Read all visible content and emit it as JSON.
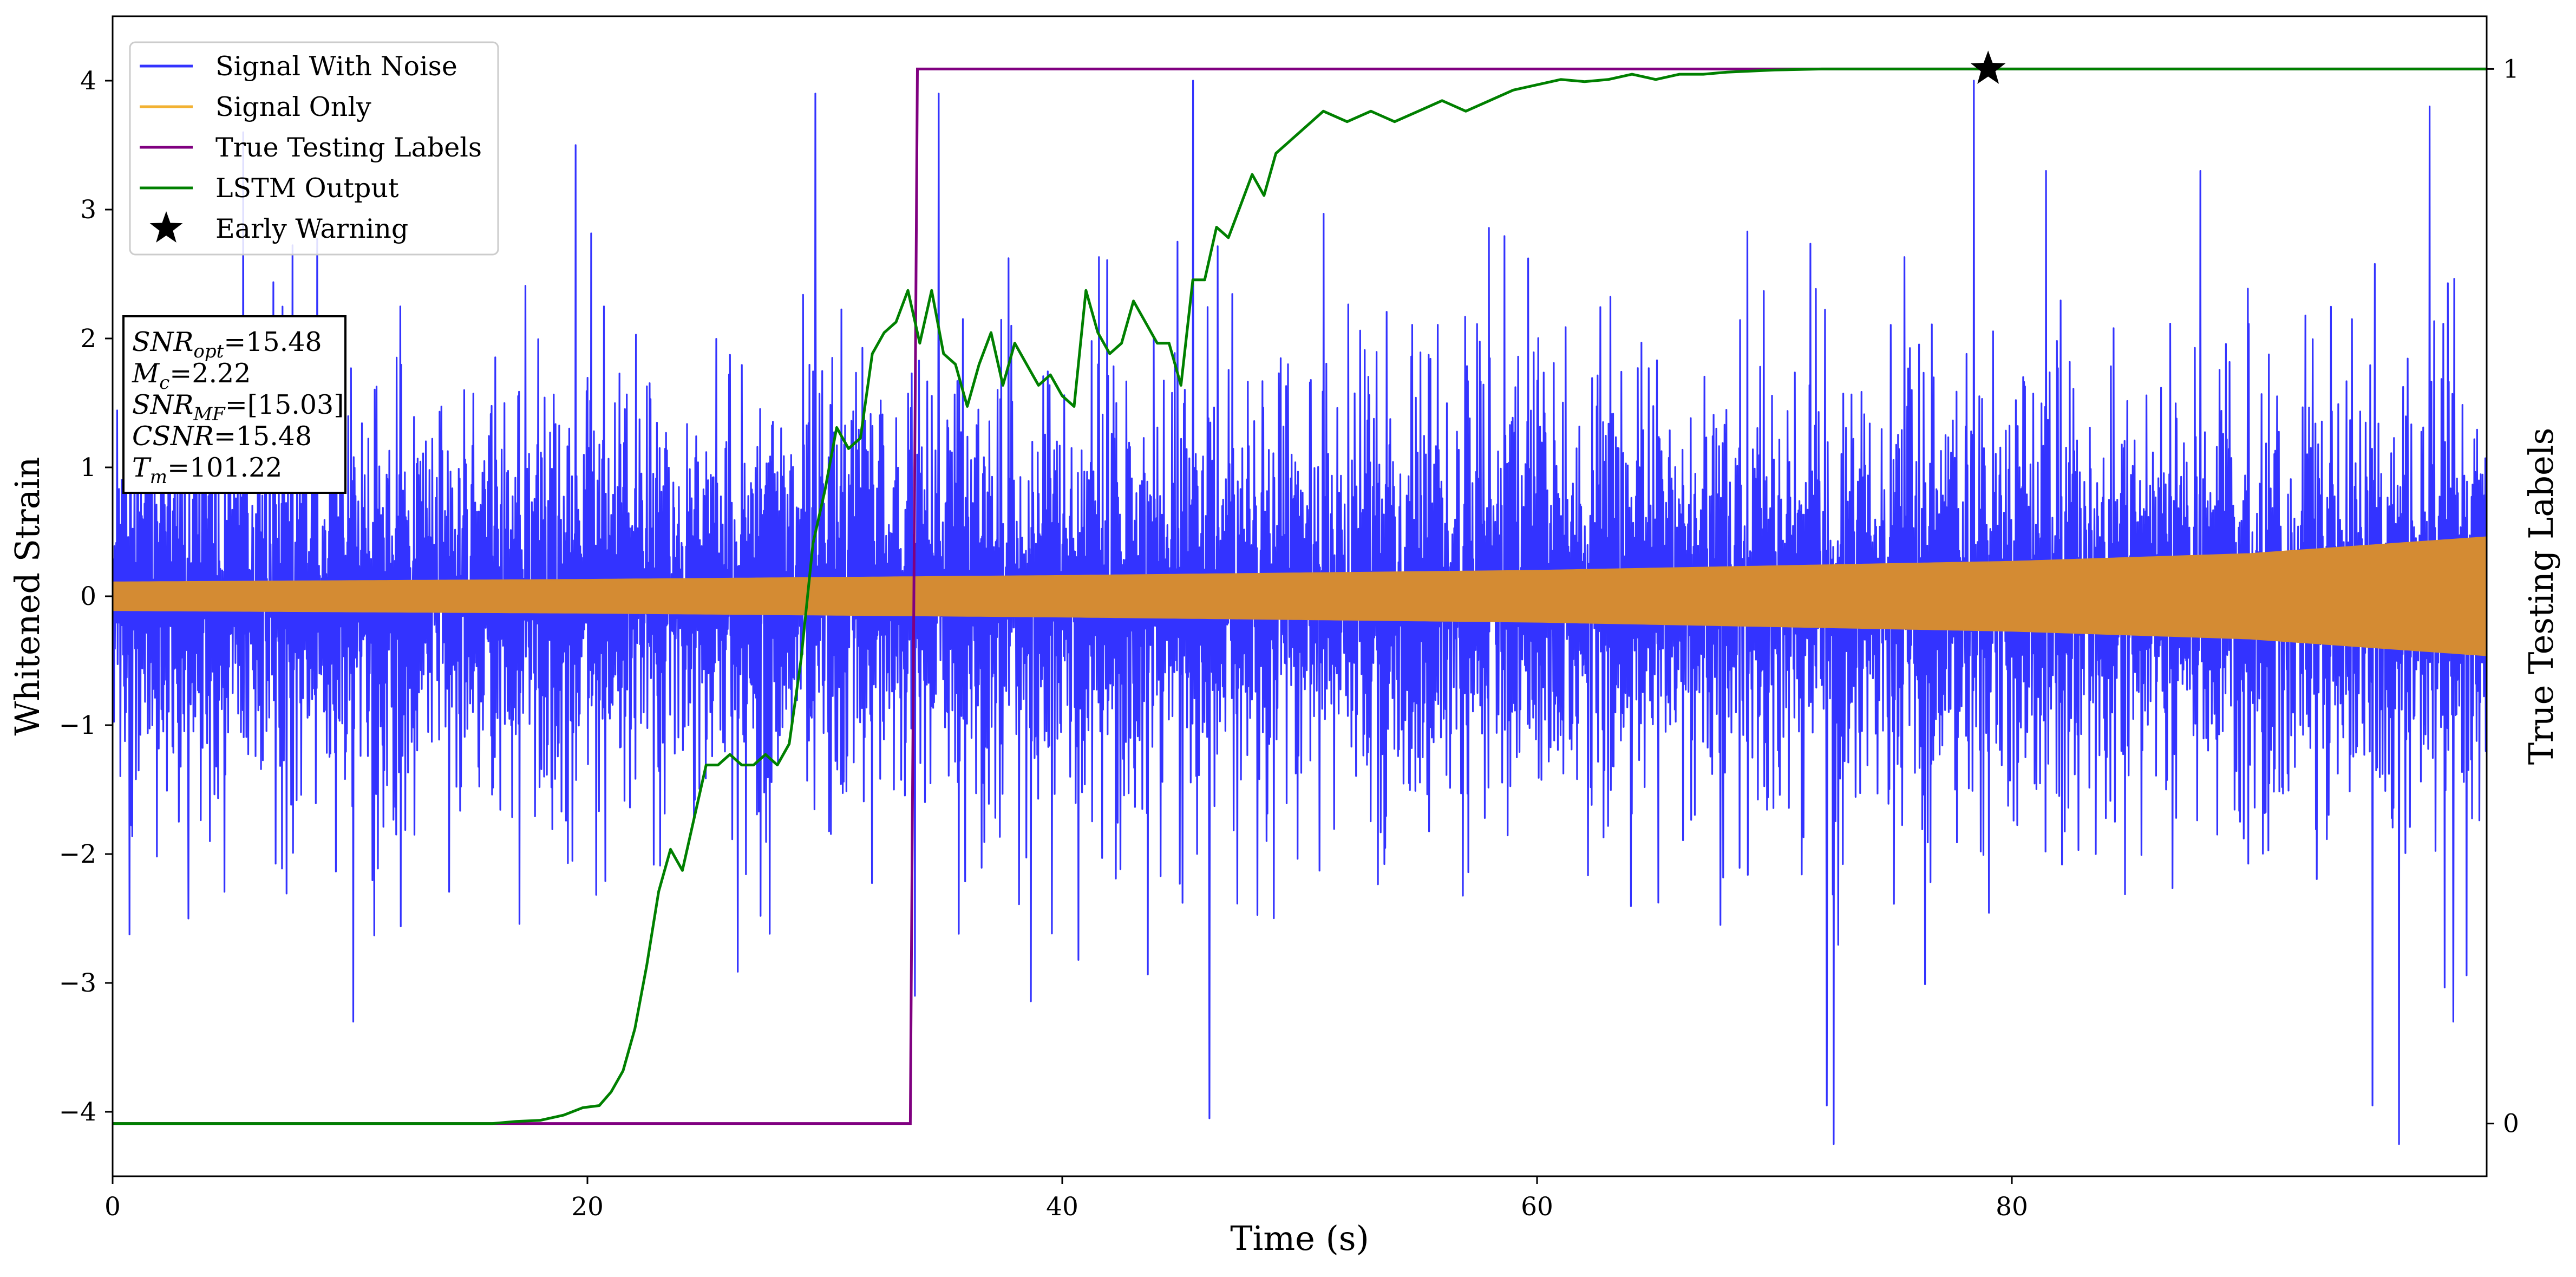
{
  "chart_data": {
    "type": "line",
    "title": "",
    "xlabel": "Time (s)",
    "ylabel": "Whitened Strain",
    "y2label": "True Testing Labels",
    "xlim": [
      0,
      100
    ],
    "ylim": [
      -4.5,
      4.5
    ],
    "y2lim": [
      -0.05,
      1.05
    ],
    "x_ticks": [
      "0",
      "20",
      "40",
      "60",
      "80"
    ],
    "y_ticks": [
      "−4",
      "−3",
      "−2",
      "−1",
      "0",
      "1",
      "2",
      "3",
      "4"
    ],
    "y2_ticks": [
      "0",
      "1"
    ],
    "legend": {
      "placement": "upper-left",
      "entries": [
        {
          "label": "Signal With Noise",
          "color": "#3333ff",
          "marker": "line"
        },
        {
          "label": "Signal Only",
          "color": "#f2b233",
          "marker": "line"
        },
        {
          "label": "True Testing Labels",
          "color": "#800080",
          "marker": "line"
        },
        {
          "label": "LSTM Output",
          "color": "#008000",
          "marker": "line"
        },
        {
          "label": "Early Warning",
          "color": "#000000",
          "marker": "star"
        }
      ]
    },
    "annotation_lines": [
      {
        "var": "SNR",
        "sub": "opt",
        "value": "=15.48"
      },
      {
        "var": "M",
        "sub": "c",
        "value": "=2.22"
      },
      {
        "var": "SNR",
        "sub": "MF",
        "value": "=[15.03]"
      },
      {
        "var": "CSNR",
        "sub": "",
        "value": "=15.48"
      },
      {
        "var": "T",
        "sub": "m",
        "value": "=101.22"
      }
    ],
    "series": [
      {
        "name": "Signal With Noise",
        "axis": "left",
        "color": "#3333ff",
        "kind": "noise_band",
        "typical_amplitude": 1.6,
        "extremes_x": [
          3.2,
          5.5,
          19.5,
          29.6,
          33.8,
          34.8,
          45.5,
          46.2,
          72.2,
          72.5,
          78.4,
          95.2,
          96.3,
          97.6,
          98.6
        ],
        "extremes_y": [
          -2.5,
          3.6,
          3.5,
          3.9,
          -3.1,
          3.9,
          4.0,
          -4.05,
          -3.95,
          -4.25,
          4.0,
          -3.95,
          -4.25,
          3.8,
          -3.3
        ]
      },
      {
        "name": "Signal Only",
        "axis": "left",
        "color": "#d48b33",
        "kind": "chirp_envelope",
        "x": [
          0,
          20,
          40,
          60,
          80,
          90,
          100
        ],
        "envelope": [
          0.11,
          0.13,
          0.16,
          0.2,
          0.27,
          0.33,
          0.46
        ]
      },
      {
        "name": "True Testing Labels",
        "axis": "right",
        "color": "#800080",
        "x": [
          0,
          33.6,
          33.9,
          100
        ],
        "y": [
          0,
          0,
          1,
          1
        ]
      },
      {
        "name": "LSTM Output",
        "axis": "right",
        "color": "#008000",
        "x": [
          0,
          16,
          17,
          18,
          19,
          19.8,
          20.5,
          21,
          21.5,
          22,
          22.5,
          23,
          23.5,
          24,
          24.5,
          25,
          25.5,
          26,
          26.5,
          27,
          27.5,
          28,
          28.5,
          29,
          29.5,
          30,
          30.5,
          31,
          31.5,
          32,
          32.5,
          33,
          33.5,
          34,
          34.5,
          35,
          35.5,
          36,
          36.5,
          37,
          37.5,
          38,
          38.5,
          39,
          39.5,
          40,
          40.5,
          41,
          41.5,
          42,
          42.5,
          43,
          43.5,
          44,
          44.5,
          45,
          45.5,
          46,
          46.5,
          47,
          47.5,
          48,
          48.5,
          49,
          49.5,
          50,
          51,
          52,
          53,
          54,
          55,
          56,
          57,
          58,
          59,
          60,
          61,
          62,
          63,
          64,
          65,
          66,
          67,
          68,
          69,
          70,
          72,
          75,
          78,
          80,
          85,
          90,
          95,
          100
        ],
        "y": [
          0,
          0,
          0.002,
          0.003,
          0.008,
          0.015,
          0.017,
          0.03,
          0.05,
          0.09,
          0.15,
          0.22,
          0.26,
          0.24,
          0.29,
          0.34,
          0.34,
          0.35,
          0.34,
          0.34,
          0.35,
          0.34,
          0.36,
          0.44,
          0.55,
          0.6,
          0.66,
          0.64,
          0.65,
          0.73,
          0.75,
          0.76,
          0.79,
          0.74,
          0.79,
          0.73,
          0.72,
          0.68,
          0.72,
          0.75,
          0.7,
          0.74,
          0.72,
          0.7,
          0.71,
          0.69,
          0.68,
          0.79,
          0.75,
          0.73,
          0.74,
          0.78,
          0.76,
          0.74,
          0.74,
          0.7,
          0.8,
          0.8,
          0.85,
          0.84,
          0.87,
          0.9,
          0.88,
          0.92,
          0.93,
          0.94,
          0.96,
          0.95,
          0.96,
          0.95,
          0.96,
          0.97,
          0.96,
          0.97,
          0.98,
          0.985,
          0.99,
          0.988,
          0.99,
          0.995,
          0.99,
          0.995,
          0.995,
          0.997,
          0.998,
          0.999,
          1.0,
          1.0,
          1.0,
          1.0,
          1.0,
          1.0,
          1.0,
          1.0
        ]
      },
      {
        "name": "Early Warning",
        "axis": "right",
        "color": "#000000",
        "kind": "marker",
        "x": [
          79
        ],
        "y": [
          1.0
        ]
      }
    ]
  }
}
